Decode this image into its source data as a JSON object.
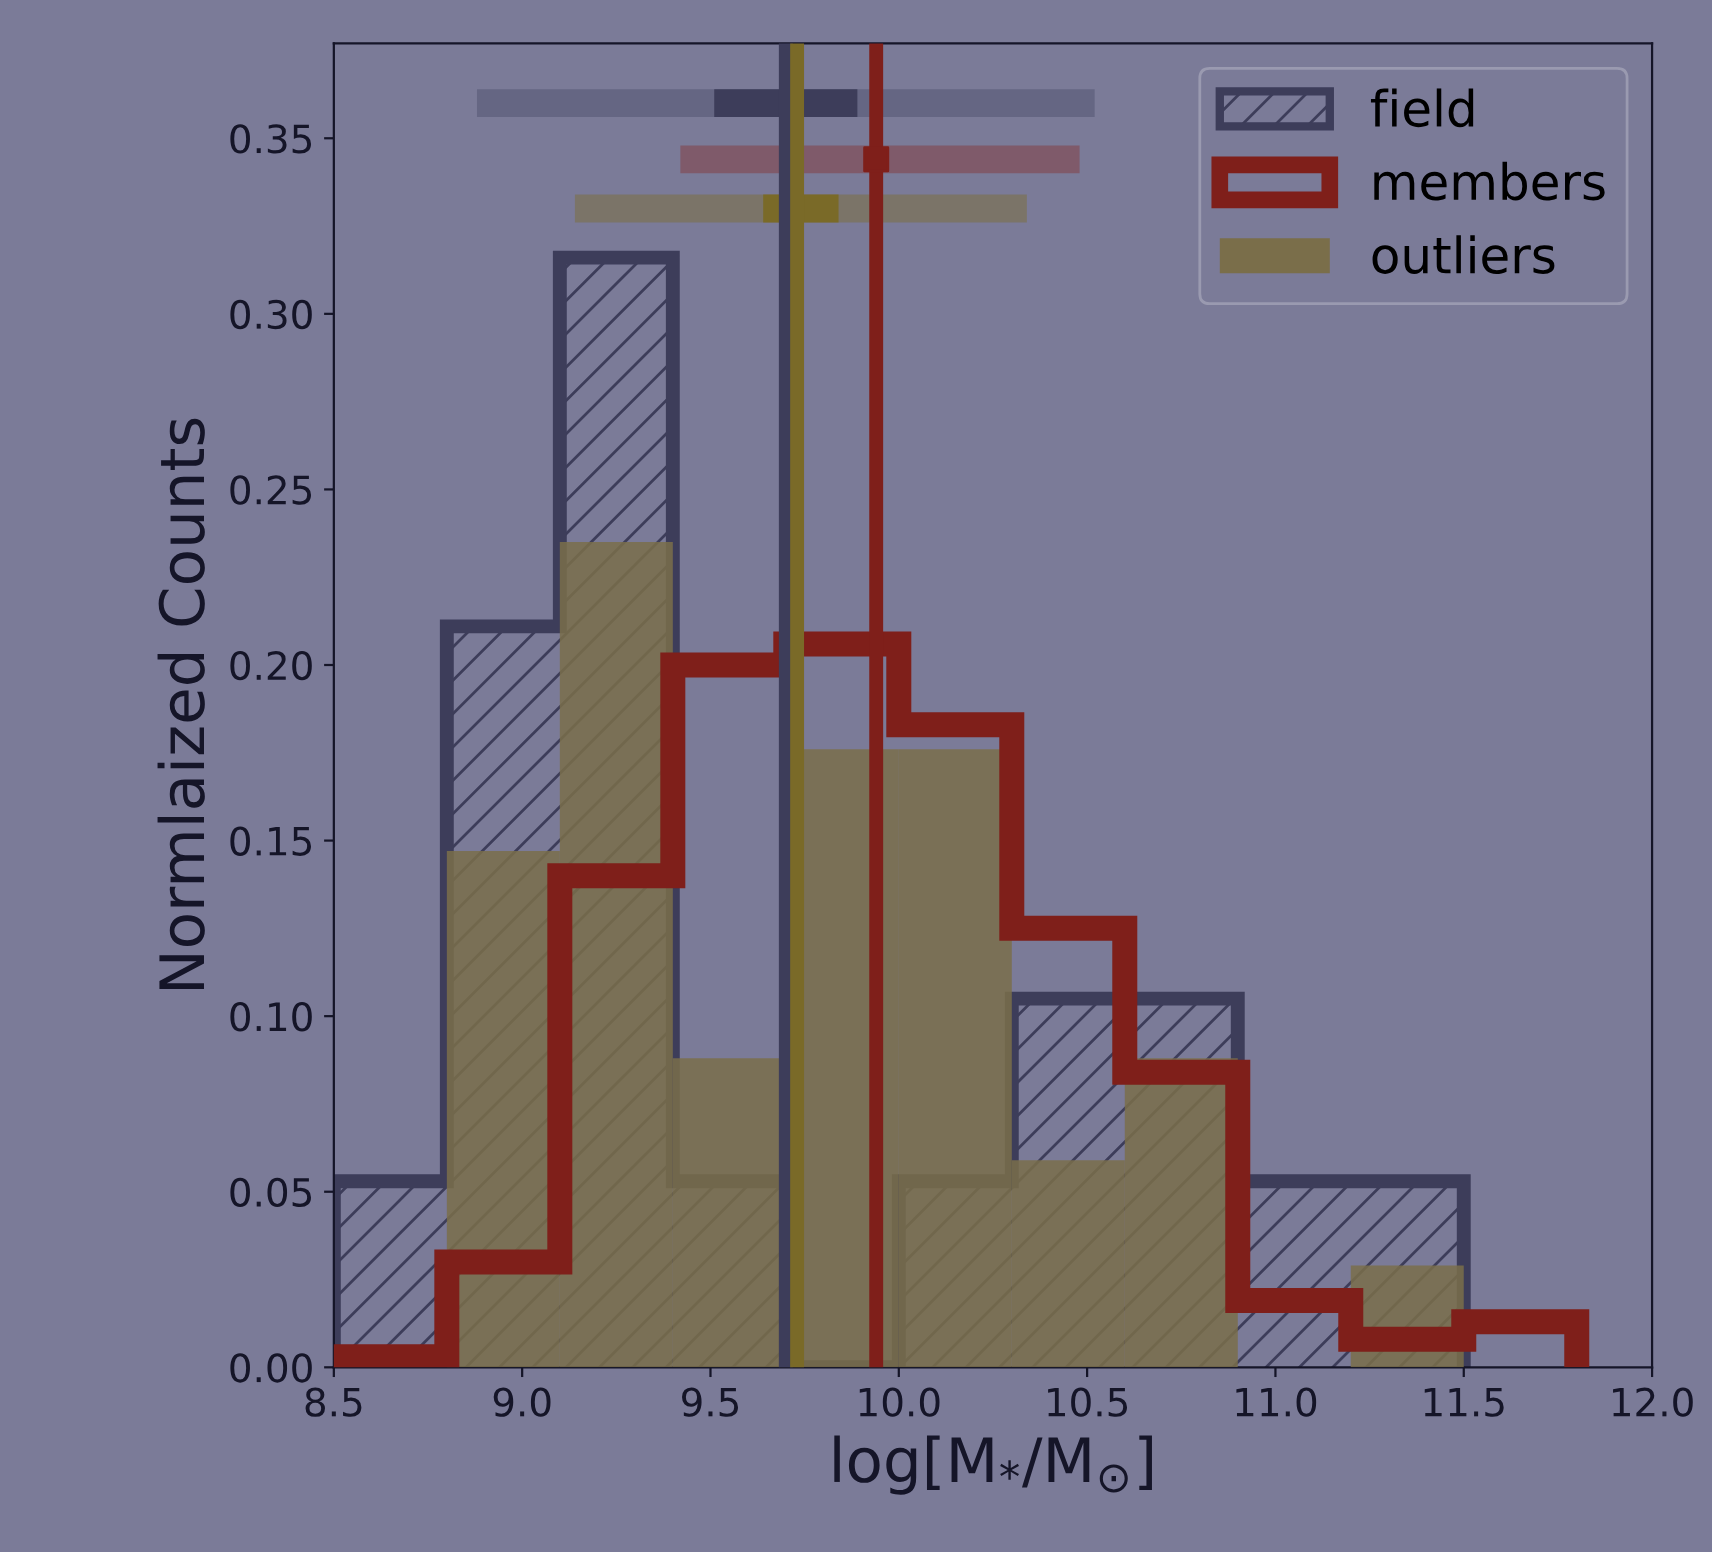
{
  "chart_data": {
    "type": "histogram",
    "xlabel": "log[M$_{*}$/M$_{⊙}$]",
    "ylabel": "Normlaized Counts",
    "xlim": [
      8.5,
      12.0
    ],
    "xticks": [
      8.5,
      {
        "value": 9,
        "label": "9.0"
      },
      9.5,
      {
        "value": 10,
        "label": "10.0"
      },
      10.5,
      {
        "value": 11,
        "label": "11.0"
      },
      11.5,
      {
        "value": 12,
        "label": "12.0"
      }
    ],
    "ylim": [
      0,
      0.377
    ],
    "yticks": [
      {
        "value": 0,
        "label": "0.00"
      },
      0.05,
      {
        "value": 0.1,
        "label": "0.10"
      },
      0.15,
      {
        "value": 0.2,
        "label": "0.20"
      },
      0.25,
      {
        "value": 0.3,
        "label": "0.30"
      },
      0.35
    ],
    "grid": false,
    "legend": "top right",
    "series": [
      {
        "name": "field",
        "color": "#3d3d5a",
        "bins": [
          8.5,
          8.8,
          9.1,
          9.4,
          9.7,
          10.0,
          10.3,
          10.6,
          10.9,
          11.2,
          11.5
        ],
        "values": [
          0.053,
          0.211,
          0.316,
          0.053,
          0.0,
          0.053,
          0.105,
          0.105,
          0.053,
          0.053
        ]
      },
      {
        "name": "members",
        "color": "#7f1f1a",
        "bins": [
          8.5,
          8.8,
          9.1,
          9.4,
          9.7,
          10.0,
          10.3,
          10.6,
          10.9,
          11.2,
          11.5,
          11.8
        ],
        "values": [
          0.003,
          0.03,
          0.14,
          0.2,
          0.206,
          0.183,
          0.125,
          0.084,
          0.019,
          0.008,
          0.013
        ]
      },
      {
        "name": "outliers",
        "type": "bar",
        "color": "#7a6e4a",
        "x": [
          8.65,
          8.95,
          9.25,
          9.55,
          9.85,
          10.15,
          10.45,
          10.75,
          11.05,
          11.35
        ],
        "values": [
          0.0,
          0.147,
          0.235,
          0.088,
          0.176,
          0.176,
          0.059,
          0.088,
          0.0,
          0.029
        ]
      },
      {
        "type": "line",
        "color": "#656683",
        "x": [
          8.88,
          10.52
        ],
        "values": [
          0.36,
          0.36
        ]
      },
      {
        "type": "line",
        "color": "#3d3d5a",
        "x": [
          9.51,
          9.89
        ],
        "values": [
          0.36,
          0.36
        ]
      },
      {
        "type": "line",
        "color": "#7f5a6a",
        "x": [
          9.42,
          10.48
        ],
        "values": [
          0.344,
          0.344
        ]
      },
      {
        "type": "scatter",
        "color": "#7f1f1a",
        "marker": "square",
        "x": [
          9.94
        ],
        "values": [
          0.344
        ]
      },
      {
        "type": "line",
        "color": "#7b7468",
        "x": [
          9.14,
          10.34
        ],
        "values": [
          0.33,
          0.33
        ]
      },
      {
        "type": "line",
        "color": "#7a6a28",
        "x": [
          9.64,
          9.84
        ],
        "values": [
          0.33,
          0.33
        ]
      }
    ],
    "ref_lines": [
      {
        "axis": "x",
        "value": 9.7,
        "color": "#3d3d5a"
      },
      {
        "axis": "x",
        "value": 9.73,
        "color": "#7a6a28"
      },
      {
        "axis": "x",
        "value": 9.94,
        "color": "#7f1f1a"
      }
    ]
  }
}
